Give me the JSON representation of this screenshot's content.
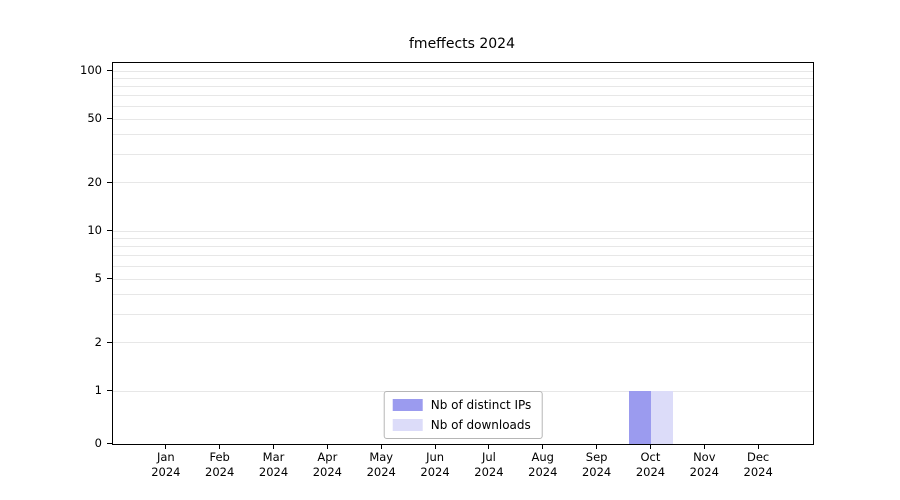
{
  "chart_data": {
    "type": "bar",
    "title": "fmeffects 2024",
    "categories": [
      "Jan 2024",
      "Feb 2024",
      "Mar 2024",
      "Apr 2024",
      "May 2024",
      "Jun 2024",
      "Jul 2024",
      "Aug 2024",
      "Sep 2024",
      "Oct 2024",
      "Nov 2024",
      "Dec 2024"
    ],
    "series": [
      {
        "name": "Nb of distinct IPs",
        "color": "#9b9bef",
        "values": [
          0,
          0,
          0,
          0,
          0,
          0,
          0,
          0,
          0,
          1,
          0,
          0
        ]
      },
      {
        "name": "Nb of downloads",
        "color": "#dcdcf9",
        "values": [
          0,
          0,
          0,
          0,
          0,
          0,
          0,
          0,
          0,
          1,
          0,
          0
        ]
      }
    ],
    "yticks": [
      0,
      1,
      2,
      5,
      10,
      20,
      50,
      100
    ],
    "ylim": [
      0,
      112
    ],
    "yscale": "log-with-zero-baseline",
    "grid": "horizontal-minor-log",
    "legend_position": "lower center",
    "grid_color": "#e7e7e7"
  }
}
